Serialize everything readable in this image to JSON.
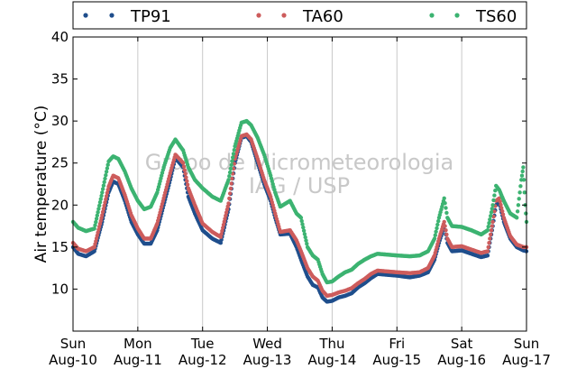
{
  "chart_data": {
    "type": "scatter",
    "title": "",
    "xlabel": "",
    "ylabel": "Air temperature (°C)",
    "ylim": [
      5,
      40
    ],
    "xlim": [
      0,
      7
    ],
    "x_unit": "days",
    "yticks": [
      10,
      15,
      20,
      25,
      30,
      35,
      40
    ],
    "xticks": [
      {
        "x": 0,
        "day": "Sun",
        "date": "Aug-10"
      },
      {
        "x": 1,
        "day": "Mon",
        "date": "Aug-11"
      },
      {
        "x": 2,
        "day": "Tue",
        "date": "Aug-12"
      },
      {
        "x": 3,
        "day": "Wed",
        "date": "Aug-13"
      },
      {
        "x": 4,
        "day": "Thu",
        "date": "Aug-14"
      },
      {
        "x": 5,
        "day": "Fri",
        "date": "Aug-15"
      },
      {
        "x": 6,
        "day": "Sat",
        "date": "Aug-16"
      },
      {
        "x": 7,
        "day": "Sun",
        "date": "Aug-17"
      }
    ],
    "grid": "vertical",
    "legend_position": "top",
    "watermark": [
      "Grupo de Micrometeorologia",
      "IAG / USP"
    ],
    "series": [
      {
        "name": "TP91",
        "color": "#1f4e8c",
        "points": [
          [
            0,
            15
          ],
          [
            0.08,
            14.2
          ],
          [
            0.2,
            13.9
          ],
          [
            0.33,
            14.5
          ],
          [
            0.45,
            18
          ],
          [
            0.55,
            21.5
          ],
          [
            0.62,
            22.8
          ],
          [
            0.7,
            22.5
          ],
          [
            0.8,
            20.5
          ],
          [
            0.9,
            18
          ],
          [
            1.0,
            16.5
          ],
          [
            1.1,
            15.4
          ],
          [
            1.2,
            15.4
          ],
          [
            1.3,
            17
          ],
          [
            1.4,
            20
          ],
          [
            1.5,
            23
          ],
          [
            1.58,
            25.6
          ],
          [
            1.7,
            24.5
          ],
          [
            1.78,
            21
          ],
          [
            1.88,
            19
          ],
          [
            2.0,
            17
          ],
          [
            2.15,
            16
          ],
          [
            2.28,
            15.5
          ],
          [
            2.4,
            19.5
          ],
          [
            2.5,
            25
          ],
          [
            2.6,
            28
          ],
          [
            2.68,
            28.2
          ],
          [
            2.75,
            27.5
          ],
          [
            2.85,
            25
          ],
          [
            2.95,
            22.5
          ],
          [
            3.05,
            20.5
          ],
          [
            3.12,
            18.5
          ],
          [
            3.2,
            16.5
          ],
          [
            3.35,
            16.6
          ],
          [
            3.45,
            15
          ],
          [
            3.52,
            13.5
          ],
          [
            3.62,
            11.5
          ],
          [
            3.7,
            10.5
          ],
          [
            3.78,
            10.2
          ],
          [
            3.85,
            9
          ],
          [
            3.92,
            8.5
          ],
          [
            4.0,
            8.6
          ],
          [
            4.1,
            9
          ],
          [
            4.2,
            9.2
          ],
          [
            4.3,
            9.5
          ],
          [
            4.4,
            10.2
          ],
          [
            4.5,
            10.7
          ],
          [
            4.6,
            11.3
          ],
          [
            4.7,
            11.8
          ],
          [
            4.85,
            11.7
          ],
          [
            5.0,
            11.6
          ],
          [
            5.2,
            11.4
          ],
          [
            5.35,
            11.6
          ],
          [
            5.48,
            12
          ],
          [
            5.58,
            13.5
          ],
          [
            5.65,
            15.5
          ],
          [
            5.73,
            17.5
          ],
          [
            5.78,
            15.5
          ],
          [
            5.85,
            14.5
          ],
          [
            6.0,
            14.6
          ],
          [
            6.15,
            14.2
          ],
          [
            6.3,
            13.8
          ],
          [
            6.4,
            14
          ],
          [
            6.48,
            17.5
          ],
          [
            6.53,
            20
          ],
          [
            6.58,
            20.3
          ],
          [
            6.65,
            18
          ],
          [
            6.75,
            16
          ],
          [
            6.85,
            15
          ],
          [
            6.95,
            14.6
          ],
          [
            7.0,
            14.5
          ]
        ]
      },
      {
        "name": "TA60",
        "color": "#cd5c5c",
        "points": [
          [
            0,
            15.5
          ],
          [
            0.08,
            14.8
          ],
          [
            0.2,
            14.5
          ],
          [
            0.33,
            15
          ],
          [
            0.45,
            18.8
          ],
          [
            0.55,
            22.2
          ],
          [
            0.62,
            23.5
          ],
          [
            0.7,
            23.2
          ],
          [
            0.8,
            21.2
          ],
          [
            0.9,
            18.8
          ],
          [
            1.0,
            17.2
          ],
          [
            1.1,
            16
          ],
          [
            1.2,
            16
          ],
          [
            1.3,
            17.8
          ],
          [
            1.4,
            20.8
          ],
          [
            1.5,
            23.8
          ],
          [
            1.58,
            26
          ],
          [
            1.7,
            25
          ],
          [
            1.78,
            22
          ],
          [
            1.88,
            20
          ],
          [
            2.0,
            17.8
          ],
          [
            2.15,
            16.8
          ],
          [
            2.28,
            16.2
          ],
          [
            2.4,
            20.2
          ],
          [
            2.5,
            25.5
          ],
          [
            2.6,
            28.2
          ],
          [
            2.68,
            28.4
          ],
          [
            2.75,
            27.8
          ],
          [
            2.85,
            25.5
          ],
          [
            2.95,
            23
          ],
          [
            3.05,
            21
          ],
          [
            3.12,
            19
          ],
          [
            3.2,
            16.8
          ],
          [
            3.35,
            17
          ],
          [
            3.45,
            15.8
          ],
          [
            3.52,
            14.5
          ],
          [
            3.62,
            12.5
          ],
          [
            3.7,
            11.5
          ],
          [
            3.78,
            11
          ],
          [
            3.85,
            9.8
          ],
          [
            3.92,
            9.2
          ],
          [
            4.0,
            9.3
          ],
          [
            4.1,
            9.6
          ],
          [
            4.2,
            9.8
          ],
          [
            4.3,
            10.1
          ],
          [
            4.4,
            10.7
          ],
          [
            4.5,
            11.2
          ],
          [
            4.6,
            11.8
          ],
          [
            4.7,
            12.2
          ],
          [
            4.85,
            12.1
          ],
          [
            5.0,
            12
          ],
          [
            5.2,
            11.9
          ],
          [
            5.35,
            12
          ],
          [
            5.48,
            12.5
          ],
          [
            5.58,
            14
          ],
          [
            5.65,
            16
          ],
          [
            5.73,
            18
          ],
          [
            5.78,
            16
          ],
          [
            5.85,
            15
          ],
          [
            6.0,
            15.1
          ],
          [
            6.15,
            14.7
          ],
          [
            6.3,
            14.3
          ],
          [
            6.4,
            14.5
          ],
          [
            6.48,
            18
          ],
          [
            6.53,
            20.5
          ],
          [
            6.58,
            20.8
          ],
          [
            6.65,
            18.5
          ],
          [
            6.75,
            16.3
          ],
          [
            6.85,
            15.3
          ],
          [
            6.95,
            15
          ],
          [
            7.0,
            15
          ]
        ]
      },
      {
        "name": "TS60",
        "color": "#3cb371",
        "points": [
          [
            0,
            18
          ],
          [
            0.08,
            17.3
          ],
          [
            0.2,
            16.9
          ],
          [
            0.33,
            17.2
          ],
          [
            0.45,
            21.5
          ],
          [
            0.55,
            25.2
          ],
          [
            0.62,
            25.8
          ],
          [
            0.7,
            25.5
          ],
          [
            0.8,
            24
          ],
          [
            0.9,
            22
          ],
          [
            1.0,
            20.5
          ],
          [
            1.1,
            19.5
          ],
          [
            1.2,
            19.8
          ],
          [
            1.3,
            21.5
          ],
          [
            1.4,
            24.5
          ],
          [
            1.5,
            26.8
          ],
          [
            1.58,
            27.8
          ],
          [
            1.7,
            26.5
          ],
          [
            1.78,
            24.5
          ],
          [
            1.88,
            23
          ],
          [
            2.0,
            22
          ],
          [
            2.15,
            21
          ],
          [
            2.28,
            20.5
          ],
          [
            2.4,
            23
          ],
          [
            2.5,
            27
          ],
          [
            2.6,
            29.8
          ],
          [
            2.68,
            30
          ],
          [
            2.75,
            29.5
          ],
          [
            2.85,
            28
          ],
          [
            2.95,
            26
          ],
          [
            3.05,
            23.5
          ],
          [
            3.12,
            21.5
          ],
          [
            3.2,
            19.8
          ],
          [
            3.35,
            20.5
          ],
          [
            3.45,
            19
          ],
          [
            3.52,
            18.5
          ],
          [
            3.62,
            15
          ],
          [
            3.7,
            14
          ],
          [
            3.78,
            13.5
          ],
          [
            3.85,
            11.8
          ],
          [
            3.92,
            10.8
          ],
          [
            4.0,
            10.9
          ],
          [
            4.1,
            11.5
          ],
          [
            4.2,
            12
          ],
          [
            4.3,
            12.3
          ],
          [
            4.4,
            13
          ],
          [
            4.5,
            13.5
          ],
          [
            4.6,
            13.9
          ],
          [
            4.7,
            14.2
          ],
          [
            4.85,
            14.1
          ],
          [
            5.0,
            14
          ],
          [
            5.2,
            13.9
          ],
          [
            5.35,
            14
          ],
          [
            5.48,
            14.5
          ],
          [
            5.58,
            16
          ],
          [
            5.65,
            18.5
          ],
          [
            5.73,
            20.8
          ],
          [
            5.78,
            18.5
          ],
          [
            5.85,
            17.5
          ],
          [
            6.0,
            17.4
          ],
          [
            6.15,
            17
          ],
          [
            6.3,
            16.5
          ],
          [
            6.4,
            17
          ],
          [
            6.48,
            20
          ],
          [
            6.53,
            22.3
          ],
          [
            6.58,
            21.8
          ],
          [
            6.65,
            20.5
          ],
          [
            6.75,
            19
          ],
          [
            6.85,
            18.5
          ],
          [
            6.92,
            23
          ],
          [
            6.95,
            24.5
          ],
          [
            6.98,
            20
          ],
          [
            7.0,
            18
          ]
        ]
      }
    ]
  }
}
